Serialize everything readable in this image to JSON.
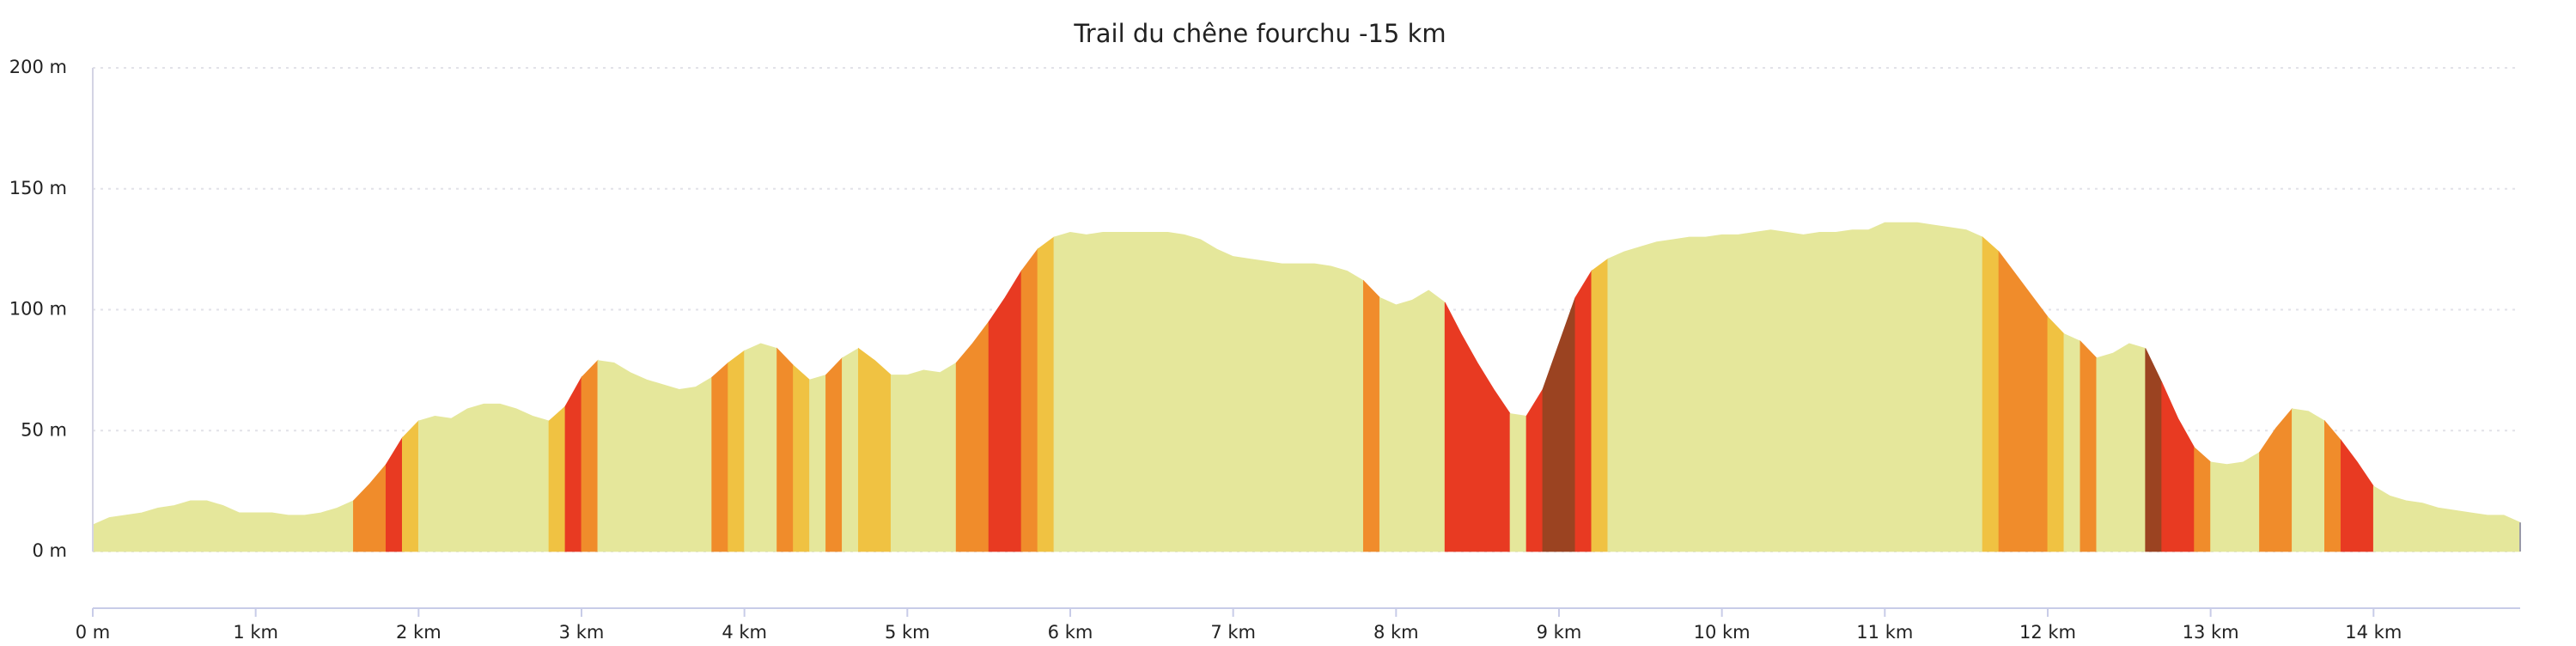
{
  "chart_data": {
    "type": "elevation",
    "title": "Trail du chêne fourchu -15 km",
    "xlim": [
      0,
      14.9
    ],
    "ylim": [
      0,
      200
    ],
    "xticks": [
      {
        "value": 0,
        "label": "0 m"
      },
      {
        "value": 1,
        "label": "1 km"
      },
      {
        "value": 2,
        "label": "2 km"
      },
      {
        "value": 3,
        "label": "3 km"
      },
      {
        "value": 4,
        "label": "4 km"
      },
      {
        "value": 5,
        "label": "5 km"
      },
      {
        "value": 6,
        "label": "6 km"
      },
      {
        "value": 7,
        "label": "7 km"
      },
      {
        "value": 8,
        "label": "8 km"
      },
      {
        "value": 9,
        "label": "9 km"
      },
      {
        "value": 10,
        "label": "10 km"
      },
      {
        "value": 11,
        "label": "11 km"
      },
      {
        "value": 12,
        "label": "12 km"
      },
      {
        "value": 13,
        "label": "13 km"
      },
      {
        "value": 14,
        "label": "14 km"
      }
    ],
    "yticks": [
      {
        "value": 0,
        "label": "0 m"
      },
      {
        "value": 50,
        "label": "50 m"
      },
      {
        "value": 100,
        "label": "100 m"
      },
      {
        "value": 150,
        "label": "150 m"
      },
      {
        "value": 200,
        "label": "200 m"
      }
    ],
    "grid": true,
    "segments": [
      {
        "color": "#e5e79b",
        "x": [
          0,
          0.1,
          0.2,
          0.3,
          0.4,
          0.5,
          0.6,
          0.7,
          0.8,
          0.9,
          1,
          1.1,
          1.2,
          1.3,
          1.4,
          1.5,
          1.6
        ],
        "values": [
          11,
          14,
          15,
          16,
          18,
          19,
          21,
          21,
          19,
          16,
          16,
          16,
          15,
          15,
          16,
          18,
          21
        ]
      },
      {
        "color": "#f08c2b",
        "x": [
          1.6,
          1.7,
          1.8
        ],
        "values": [
          21,
          28,
          36
        ]
      },
      {
        "color": "#e83a22",
        "x": [
          1.8,
          1.9
        ],
        "values": [
          36,
          47
        ]
      },
      {
        "color": "#f0c242",
        "x": [
          1.9,
          2
        ],
        "values": [
          47,
          54
        ]
      },
      {
        "color": "#e5e79b",
        "x": [
          2,
          2.1,
          2.2,
          2.3,
          2.4,
          2.5,
          2.6,
          2.7,
          2.8
        ],
        "values": [
          54,
          56,
          55,
          59,
          61,
          61,
          59,
          56,
          54
        ]
      },
      {
        "color": "#f0c242",
        "x": [
          2.8,
          2.9
        ],
        "values": [
          54,
          60
        ]
      },
      {
        "color": "#e83a22",
        "x": [
          2.9,
          3
        ],
        "values": [
          60,
          72
        ]
      },
      {
        "color": "#f08c2b",
        "x": [
          3,
          3.1
        ],
        "values": [
          72,
          79
        ]
      },
      {
        "color": "#e5e79b",
        "x": [
          3.1,
          3.2,
          3.3,
          3.4,
          3.5,
          3.6,
          3.7,
          3.8
        ],
        "values": [
          79,
          78,
          74,
          71,
          69,
          67,
          68,
          72
        ]
      },
      {
        "color": "#f08c2b",
        "x": [
          3.8,
          3.9
        ],
        "values": [
          72,
          78
        ]
      },
      {
        "color": "#f0c242",
        "x": [
          3.9,
          4
        ],
        "values": [
          78,
          83
        ]
      },
      {
        "color": "#e5e79b",
        "x": [
          4,
          4.1,
          4.2
        ],
        "values": [
          83,
          86,
          84
        ]
      },
      {
        "color": "#f08c2b",
        "x": [
          4.2,
          4.3
        ],
        "values": [
          84,
          77
        ]
      },
      {
        "color": "#f0c242",
        "x": [
          4.3,
          4.4
        ],
        "values": [
          77,
          71
        ]
      },
      {
        "color": "#e5e79b",
        "x": [
          4.4,
          4.5
        ],
        "values": [
          71,
          73
        ]
      },
      {
        "color": "#f08c2b",
        "x": [
          4.5,
          4.6
        ],
        "values": [
          73,
          80
        ]
      },
      {
        "color": "#e5e79b",
        "x": [
          4.6,
          4.7
        ],
        "values": [
          80,
          84
        ]
      },
      {
        "color": "#f0c242",
        "x": [
          4.7,
          4.8,
          4.9
        ],
        "values": [
          84,
          79,
          73
        ]
      },
      {
        "color": "#e5e79b",
        "x": [
          4.9,
          5,
          5.1,
          5.2,
          5.3
        ],
        "values": [
          73,
          73,
          75,
          74,
          78
        ]
      },
      {
        "color": "#f08c2b",
        "x": [
          5.3,
          5.4,
          5.5
        ],
        "values": [
          78,
          86,
          95
        ]
      },
      {
        "color": "#e83a22",
        "x": [
          5.5,
          5.6,
          5.7
        ],
        "values": [
          95,
          105,
          116
        ]
      },
      {
        "color": "#f08c2b",
        "x": [
          5.7,
          5.8
        ],
        "values": [
          116,
          125
        ]
      },
      {
        "color": "#f0c242",
        "x": [
          5.8,
          5.9
        ],
        "values": [
          125,
          130
        ]
      },
      {
        "color": "#e5e79b",
        "x": [
          5.9,
          6,
          6.1,
          6.2,
          6.3,
          6.4,
          6.5,
          6.6,
          6.7,
          6.8,
          6.9,
          7,
          7.1,
          7.2,
          7.3,
          7.4,
          7.5,
          7.6,
          7.7,
          7.8
        ],
        "values": [
          130,
          132,
          131,
          132,
          132,
          132,
          132,
          132,
          131,
          129,
          125,
          122,
          121,
          120,
          119,
          119,
          119,
          118,
          116,
          112
        ]
      },
      {
        "color": "#f08c2b",
        "x": [
          7.8,
          7.9
        ],
        "values": [
          112,
          105
        ]
      },
      {
        "color": "#e5e79b",
        "x": [
          7.9,
          8,
          8.1,
          8.2,
          8.3
        ],
        "values": [
          105,
          102,
          104,
          108,
          103
        ]
      },
      {
        "color": "#e83a22",
        "x": [
          8.3,
          8.4,
          8.5,
          8.6,
          8.7
        ],
        "values": [
          103,
          90,
          78,
          67,
          57
        ]
      },
      {
        "color": "#e5e79b",
        "x": [
          8.7,
          8.8
        ],
        "values": [
          57,
          56
        ]
      },
      {
        "color": "#e83a22",
        "x": [
          8.8,
          8.9
        ],
        "values": [
          56,
          67
        ]
      },
      {
        "color": "#9b4321",
        "x": [
          8.9,
          9,
          9.1
        ],
        "values": [
          67,
          86,
          105
        ]
      },
      {
        "color": "#e83a22",
        "x": [
          9.1,
          9.2
        ],
        "values": [
          105,
          116
        ]
      },
      {
        "color": "#f0c242",
        "x": [
          9.2,
          9.3
        ],
        "values": [
          116,
          121
        ]
      },
      {
        "color": "#e5e79b",
        "x": [
          9.3,
          9.4,
          9.5,
          9.6,
          9.7,
          9.8,
          9.9,
          10,
          10.1,
          10.2,
          10.3,
          10.4,
          10.5,
          10.6,
          10.7,
          10.8,
          10.9,
          11,
          11.1,
          11.2,
          11.3,
          11.4,
          11.5,
          11.6
        ],
        "values": [
          121,
          124,
          126,
          128,
          129,
          130,
          130,
          131,
          131,
          132,
          133,
          132,
          131,
          132,
          132,
          133,
          133,
          136,
          136,
          136,
          135,
          134,
          133,
          130
        ]
      },
      {
        "color": "#f0c242",
        "x": [
          11.6,
          11.7
        ],
        "values": [
          130,
          124
        ]
      },
      {
        "color": "#f08c2b",
        "x": [
          11.7,
          11.8,
          11.9,
          12
        ],
        "values": [
          124,
          115,
          106,
          97
        ]
      },
      {
        "color": "#f0c242",
        "x": [
          12,
          12.1
        ],
        "values": [
          97,
          90
        ]
      },
      {
        "color": "#e5e79b",
        "x": [
          12.1,
          12.2
        ],
        "values": [
          90,
          87
        ]
      },
      {
        "color": "#f08c2b",
        "x": [
          12.2,
          12.3
        ],
        "values": [
          87,
          80
        ]
      },
      {
        "color": "#e5e79b",
        "x": [
          12.3,
          12.4,
          12.5,
          12.6
        ],
        "values": [
          80,
          82,
          86,
          84
        ]
      },
      {
        "color": "#9b4321",
        "x": [
          12.6,
          12.7
        ],
        "values": [
          84,
          70
        ]
      },
      {
        "color": "#e83a22",
        "x": [
          12.7,
          12.8,
          12.9
        ],
        "values": [
          70,
          55,
          43
        ]
      },
      {
        "color": "#f08c2b",
        "x": [
          12.9,
          13
        ],
        "values": [
          43,
          37
        ]
      },
      {
        "color": "#e5e79b",
        "x": [
          13,
          13.1,
          13.2,
          13.3
        ],
        "values": [
          37,
          36,
          37,
          41
        ]
      },
      {
        "color": "#f08c2b",
        "x": [
          13.3,
          13.4,
          13.5
        ],
        "values": [
          41,
          51,
          59
        ]
      },
      {
        "color": "#e5e79b",
        "x": [
          13.5,
          13.6,
          13.7
        ],
        "values": [
          59,
          58,
          54
        ]
      },
      {
        "color": "#f08c2b",
        "x": [
          13.7,
          13.8
        ],
        "values": [
          54,
          46
        ]
      },
      {
        "color": "#e83a22",
        "x": [
          13.8,
          13.9,
          14
        ],
        "values": [
          46,
          37,
          27
        ]
      },
      {
        "color": "#e5e79b",
        "x": [
          14,
          14.1,
          14.2,
          14.3,
          14.4,
          14.5,
          14.6,
          14.7,
          14.8,
          14.9
        ],
        "values": [
          27,
          23,
          21,
          20,
          18,
          17,
          16,
          15,
          15,
          12
        ]
      }
    ]
  }
}
